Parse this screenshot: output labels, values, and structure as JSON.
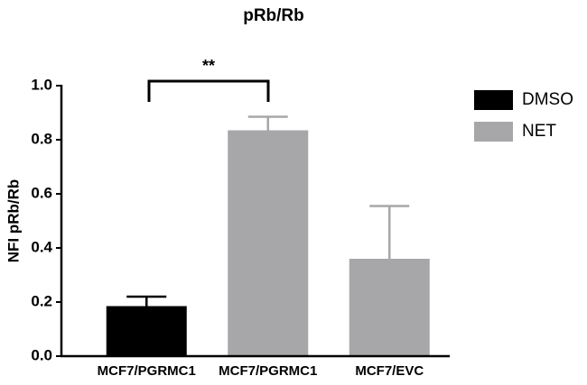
{
  "chart_data": {
    "type": "bar",
    "title": "pRb/Rb",
    "y_label": "NFI pRb/Rb",
    "categories": [
      "MCF7/PGRMC1",
      "MCF7/PGRMC1",
      "MCF7/EVC"
    ],
    "series": [
      {
        "name": "DMSO",
        "color": "#000000",
        "values": [
          0.185,
          null,
          null
        ],
        "errors": [
          0.035,
          null,
          null
        ]
      },
      {
        "name": "NET",
        "color": "#a7a7a9",
        "values": [
          null,
          0.835,
          0.36
        ],
        "errors": [
          null,
          0.05,
          0.195
        ]
      }
    ],
    "ylim": [
      0,
      1.0
    ],
    "yticks": [
      {
        "value": 0,
        "label": "0.0"
      },
      0.2,
      0.4,
      0.6,
      0.8,
      {
        "value": 1.0,
        "label": "1.0"
      }
    ],
    "annotation": "**",
    "legend": "right"
  }
}
